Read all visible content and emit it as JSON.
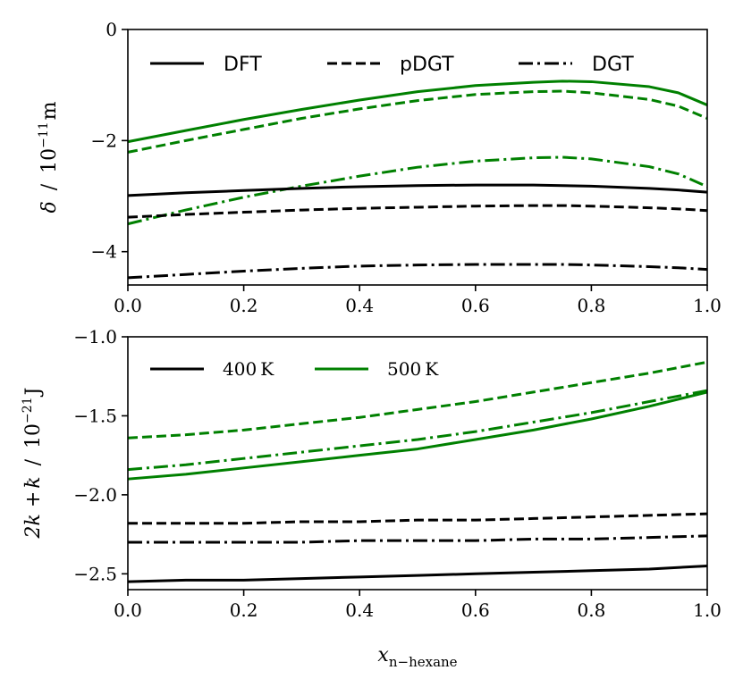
{
  "colors": {
    "black": "#000000",
    "green": "#008000"
  },
  "chart_data": [
    {
      "type": "line",
      "panel": "top",
      "ylabel": "δ / 10^-11 m",
      "ylabel_parts": {
        "symbol": "δ",
        "sep": "/",
        "unit_base": "10",
        "unit_exp": "−11",
        "unit_tail": "m"
      },
      "xlim": [
        0,
        1
      ],
      "ylim": [
        -4.6,
        0
      ],
      "xticks": [
        0,
        0.2,
        0.4,
        0.6,
        0.8,
        1.0
      ],
      "xtick_labels": [
        "0.0",
        "0.2",
        "0.4",
        "0.6",
        "0.8",
        "1.0"
      ],
      "yticks": [
        -4,
        -2,
        0
      ],
      "ytick_labels": [
        "−4",
        "−2",
        "0"
      ],
      "legend": {
        "placement": "top",
        "entries": [
          {
            "label": "DFT",
            "style": "solid"
          },
          {
            "label": "pDGT",
            "style": "dashed"
          },
          {
            "label": "DGT",
            "style": "dashdot"
          }
        ]
      },
      "x": [
        0,
        0.1,
        0.2,
        0.3,
        0.4,
        0.5,
        0.6,
        0.7,
        0.75,
        0.8,
        0.9,
        0.95,
        1.0
      ],
      "series": [
        {
          "name": "DFT 500 K",
          "method": "DFT",
          "temperature": "500 K",
          "color": "green",
          "style": "solid",
          "values": [
            -2.02,
            -1.82,
            -1.62,
            -1.44,
            -1.27,
            -1.12,
            -1.01,
            -0.95,
            -0.93,
            -0.94,
            -1.03,
            -1.14,
            -1.36
          ]
        },
        {
          "name": "pDGT 500 K",
          "method": "pDGT",
          "temperature": "500 K",
          "color": "green",
          "style": "dashed",
          "values": [
            -2.21,
            -2.0,
            -1.8,
            -1.6,
            -1.43,
            -1.28,
            -1.17,
            -1.12,
            -1.11,
            -1.14,
            -1.26,
            -1.38,
            -1.6
          ]
        },
        {
          "name": "DGT 500 K",
          "method": "DGT",
          "temperature": "500 K",
          "color": "green",
          "style": "dashdot",
          "values": [
            -3.5,
            -3.25,
            -3.02,
            -2.82,
            -2.64,
            -2.48,
            -2.37,
            -2.31,
            -2.3,
            -2.33,
            -2.47,
            -2.6,
            -2.83
          ]
        },
        {
          "name": "DFT 400 K",
          "method": "DFT",
          "temperature": "400 K",
          "color": "black",
          "style": "solid",
          "values": [
            -2.99,
            -2.94,
            -2.9,
            -2.86,
            -2.83,
            -2.81,
            -2.8,
            -2.8,
            -2.81,
            -2.82,
            -2.86,
            -2.89,
            -2.93
          ]
        },
        {
          "name": "pDGT 400 K",
          "method": "pDGT",
          "temperature": "400 K",
          "color": "black",
          "style": "dashed",
          "values": [
            -3.38,
            -3.33,
            -3.29,
            -3.25,
            -3.22,
            -3.2,
            -3.18,
            -3.17,
            -3.17,
            -3.18,
            -3.21,
            -3.23,
            -3.26
          ]
        },
        {
          "name": "DGT 400 K",
          "method": "DGT",
          "temperature": "400 K",
          "color": "black",
          "style": "dashdot",
          "values": [
            -4.47,
            -4.41,
            -4.35,
            -4.3,
            -4.26,
            -4.24,
            -4.23,
            -4.23,
            -4.23,
            -4.24,
            -4.27,
            -4.29,
            -4.32
          ]
        }
      ]
    },
    {
      "type": "line",
      "panel": "bottom",
      "ylabel": "2k + k̄ / 10^-21 J",
      "ylabel_parts": {
        "expr_a": "2k + ",
        "expr_k": "k",
        "expr_bar": "¯",
        "sep": "/",
        "unit_base": "10",
        "unit_exp": "−21",
        "unit_tail": "J"
      },
      "xlabel": "x_n−hexane",
      "xlabel_parts": {
        "symbol": "x",
        "subscript": "n−hexane"
      },
      "xlim": [
        0,
        1
      ],
      "ylim": [
        -2.6,
        -1.0
      ],
      "xticks": [
        0,
        0.2,
        0.4,
        0.6,
        0.8,
        1.0
      ],
      "xtick_labels": [
        "0.0",
        "0.2",
        "0.4",
        "0.6",
        "0.8",
        "1.0"
      ],
      "yticks": [
        -2.5,
        -2.0,
        -1.5,
        -1.0
      ],
      "ytick_labels": [
        "−2.5",
        "−2.0",
        "−1.5",
        "−1.0"
      ],
      "legend": {
        "placement": "top-left",
        "entries": [
          {
            "label_num": "400",
            "label_unit": "K",
            "color": "black"
          },
          {
            "label_num": "500",
            "label_unit": "K",
            "color": "green"
          }
        ]
      },
      "x": [
        0,
        0.1,
        0.2,
        0.3,
        0.4,
        0.5,
        0.6,
        0.7,
        0.8,
        0.9,
        1.0
      ],
      "series": [
        {
          "name": "pDGT 500 K",
          "method": "pDGT",
          "temperature": "500 K",
          "color": "green",
          "style": "dashed",
          "values": [
            -1.64,
            -1.62,
            -1.59,
            -1.55,
            -1.51,
            -1.46,
            -1.41,
            -1.35,
            -1.29,
            -1.23,
            -1.16
          ]
        },
        {
          "name": "DGT 500 K",
          "method": "DGT",
          "temperature": "500 K",
          "color": "green",
          "style": "dashdot",
          "values": [
            -1.84,
            -1.81,
            -1.77,
            -1.73,
            -1.69,
            -1.65,
            -1.6,
            -1.54,
            -1.48,
            -1.41,
            -1.34
          ]
        },
        {
          "name": "DFT 500 K",
          "method": "DFT",
          "temperature": "500 K",
          "color": "green",
          "style": "solid",
          "values": [
            -1.9,
            -1.87,
            -1.83,
            -1.79,
            -1.75,
            -1.71,
            -1.65,
            -1.59,
            -1.52,
            -1.44,
            -1.35
          ]
        },
        {
          "name": "pDGT 400 K",
          "method": "pDGT",
          "temperature": "400 K",
          "color": "black",
          "style": "dashed",
          "values": [
            -2.18,
            -2.18,
            -2.18,
            -2.17,
            -2.17,
            -2.16,
            -2.16,
            -2.15,
            -2.14,
            -2.13,
            -2.12
          ]
        },
        {
          "name": "DGT 400 K",
          "method": "DGT",
          "temperature": "400 K",
          "color": "black",
          "style": "dashdot",
          "values": [
            -2.3,
            -2.3,
            -2.3,
            -2.3,
            -2.29,
            -2.29,
            -2.29,
            -2.28,
            -2.28,
            -2.27,
            -2.26
          ]
        },
        {
          "name": "DFT 400 K",
          "method": "DFT",
          "temperature": "400 K",
          "color": "black",
          "style": "solid",
          "values": [
            -2.55,
            -2.54,
            -2.54,
            -2.53,
            -2.52,
            -2.51,
            -2.5,
            -2.49,
            -2.48,
            -2.47,
            -2.45
          ]
        }
      ]
    }
  ]
}
